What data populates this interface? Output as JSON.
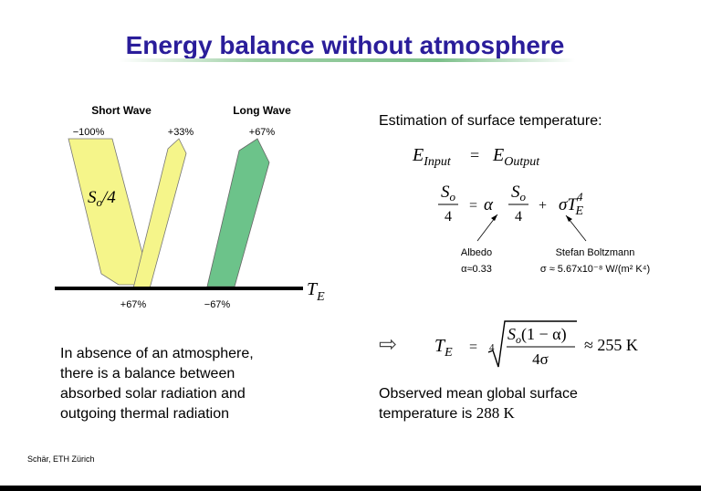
{
  "title": "Energy balance without atmosphere",
  "diagram": {
    "short_wave": "Short Wave",
    "long_wave": "Long Wave",
    "incoming": "−100%",
    "reflected": "+33%",
    "emitted": "+67%",
    "source": {
      "base": "S",
      "sub": "o",
      "rest": "/4"
    },
    "absorbed": "+67%",
    "outgoing": "−67%",
    "surface": {
      "base": "T",
      "sub": "E"
    }
  },
  "estimation": {
    "heading": "Estimation of surface temperature:",
    "eq1": {
      "lhs_base": "E",
      "lhs_sub": "Input",
      "op": "=",
      "rhs_base": "E",
      "rhs_sub": "Output"
    },
    "eq2": {
      "lhs_num_base": "S",
      "lhs_num_sub": "o",
      "lhs_den": "4",
      "op": "=",
      "alpha": "α",
      "rhs_num_base": "S",
      "rhs_num_sub": "o",
      "rhs_den": "4",
      "plus": "+",
      "sigma_t": "σT",
      "sup": "4",
      "sub": "E"
    },
    "albedo": {
      "label": "Albedo",
      "value": "α≈0.33"
    },
    "stefan": {
      "label": "Stefan Boltzmann",
      "value": "σ ≈ 5.67x10⁻⁸ W/(m² K⁴)"
    },
    "eq3": {
      "arrow": "⇨",
      "lhs_base": "T",
      "lhs_sub": "E",
      "op": "=",
      "root_index": "4",
      "num_base": "S",
      "num_sub": "o",
      "num_rest": "(1 − α)",
      "den": "4σ",
      "result": "≈ 255 K"
    }
  },
  "paragraph": [
    "In absence of an atmosphere,",
    "there is a balance between",
    "absorbed solar radiation and",
    "outgoing thermal radiation"
  ],
  "observed": {
    "line1": "Observed mean global surface",
    "line2": "temperature is ",
    "value": "288 K"
  },
  "footer": "Schär, ETH Zürich"
}
